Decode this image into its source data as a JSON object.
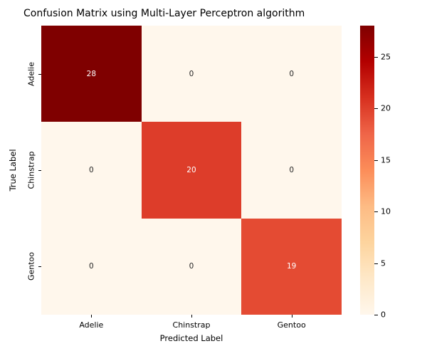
{
  "title": "Confusion Matrix using Multi-Layer Perceptron algorithm",
  "chart_data": {
    "type": "heatmap",
    "title": "Confusion Matrix using Multi-Layer Perceptron algorithm",
    "xlabel": "Predicted Label",
    "ylabel": "True Label",
    "x_categories": [
      "Adelie",
      "Chinstrap",
      "Gentoo"
    ],
    "y_categories": [
      "Adelie",
      "Chinstrap",
      "Gentoo"
    ],
    "matrix": [
      [
        28,
        0,
        0
      ],
      [
        0,
        20,
        0
      ],
      [
        0,
        0,
        19
      ]
    ],
    "vmin": 0,
    "vmax": 28,
    "colormap": "OrRd",
    "cell_colors": [
      [
        "#7f0000",
        "#fff7ec",
        "#fff7ec"
      ],
      [
        "#fff7ec",
        "#dd3d2a",
        "#fff7ec"
      ],
      [
        "#fff7ec",
        "#fff7ec",
        "#e44b33"
      ]
    ],
    "annot_colors": [
      [
        "#ffffff",
        "#262626",
        "#262626"
      ],
      [
        "#262626",
        "#ffffff",
        "#262626"
      ],
      [
        "#262626",
        "#262626",
        "#ffffff"
      ]
    ],
    "legend_position": "right",
    "grid": false,
    "colorbar": {
      "ticks": [
        0,
        5,
        10,
        15,
        20,
        25
      ],
      "gradient_stops": [
        "#fff7ec",
        "#fee8c8",
        "#fdd49e",
        "#fdbb84",
        "#fc8d59",
        "#ef6548",
        "#d7301f",
        "#b30000",
        "#7f0000"
      ]
    }
  }
}
